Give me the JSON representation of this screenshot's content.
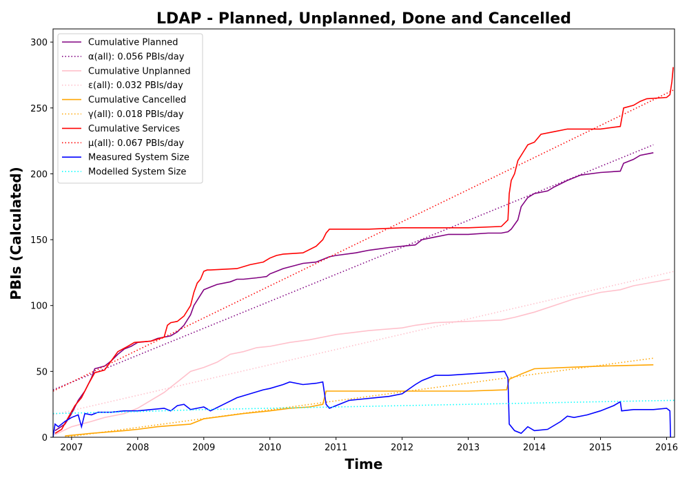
{
  "chart_data": {
    "type": "line",
    "title": "LDAP - Planned, Unplanned, Done  and Cancelled",
    "xlabel": "Time",
    "ylabel": "PBIs (Calculated)",
    "xlim": [
      2006.72,
      2016.12
    ],
    "ylim": [
      0,
      310
    ],
    "x_ticks": [
      2007,
      2008,
      2009,
      2010,
      2011,
      2012,
      2013,
      2014,
      2015,
      2016
    ],
    "x_tick_labels": [
      "2007",
      "2008",
      "2009",
      "2010",
      "2011",
      "2012",
      "2013",
      "2014",
      "2015",
      "2016"
    ],
    "y_ticks": [
      0,
      50,
      100,
      150,
      200,
      250,
      300
    ],
    "y_tick_labels": [
      "0",
      "50",
      "100",
      "150",
      "200",
      "250",
      "300"
    ],
    "grid": false,
    "legend_position": "top-left",
    "series": [
      {
        "name": "Cumulative Planned",
        "color": "#800080",
        "style": "solid",
        "x": [
          2006.75,
          2006.9,
          2007.0,
          2007.1,
          2007.2,
          2007.3,
          2007.35,
          2007.5,
          2007.6,
          2007.7,
          2007.8,
          2007.9,
          2008.0,
          2008.2,
          2008.3,
          2008.5,
          2008.6,
          2008.7,
          2008.8,
          2008.85,
          2008.9,
          2009.0,
          2009.1,
          2009.2,
          2009.4,
          2009.5,
          2009.6,
          2009.8,
          2009.95,
          2010.0,
          2010.1,
          2010.2,
          2010.5,
          2010.7,
          2010.8,
          2010.9,
          2011.0,
          2011.3,
          2011.5,
          2011.8,
          2012.0,
          2012.2,
          2012.3,
          2012.5,
          2012.7,
          2013.0,
          2013.3,
          2013.5,
          2013.6,
          2013.65,
          2013.75,
          2013.8,
          2013.9,
          2014.0,
          2014.2,
          2014.3,
          2014.5,
          2014.7,
          2015.0,
          2015.3,
          2015.35,
          2015.5,
          2015.6,
          2015.8
        ],
        "y": [
          5,
          10,
          18,
          28,
          35,
          45,
          52,
          54,
          58,
          63,
          67,
          69,
          72,
          73,
          75,
          77,
          80,
          85,
          93,
          100,
          104,
          112,
          114,
          116,
          118,
          120,
          120,
          121,
          122,
          124,
          126,
          128,
          132,
          133,
          135,
          137,
          138,
          140,
          142,
          144,
          145,
          146,
          150,
          152,
          154,
          154,
          155,
          155,
          156,
          158,
          165,
          175,
          182,
          185,
          187,
          190,
          195,
          199,
          201,
          202,
          208,
          211,
          214,
          216
        ]
      },
      {
        "name": "α(all): 0.056 PBIs/day",
        "color": "#800080",
        "style": "dotted",
        "x": [
          2006.72,
          2015.8
        ],
        "y": [
          36,
          222
        ]
      },
      {
        "name": "Cumulative Unplanned",
        "color": "#ffc0cb",
        "style": "solid",
        "x": [
          2006.75,
          2007.0,
          2007.3,
          2007.5,
          2007.8,
          2008.0,
          2008.2,
          2008.4,
          2008.6,
          2008.8,
          2009.0,
          2009.2,
          2009.4,
          2009.6,
          2009.8,
          2010.0,
          2010.3,
          2010.6,
          2010.8,
          2011.0,
          2011.5,
          2012.0,
          2012.2,
          2012.5,
          2013.0,
          2013.5,
          2013.7,
          2014.0,
          2014.3,
          2014.6,
          2015.0,
          2015.3,
          2015.5,
          2016.05
        ],
        "y": [
          2,
          8,
          12,
          15,
          18,
          22,
          28,
          34,
          42,
          50,
          53,
          57,
          63,
          65,
          68,
          69,
          72,
          74,
          76,
          78,
          81,
          83,
          85,
          87,
          88,
          89,
          91,
          95,
          100,
          105,
          110,
          112,
          115,
          120
        ]
      },
      {
        "name": "ε(all): 0.032 PBIs/day",
        "color": "#ffc0cb",
        "style": "dotted",
        "x": [
          2006.72,
          2016.12
        ],
        "y": [
          17,
          126
        ]
      },
      {
        "name": "Cumulative Cancelled",
        "color": "#ffa500",
        "style": "solid",
        "x": [
          2006.9,
          2007.3,
          2007.8,
          2008.0,
          2008.3,
          2008.8,
          2009.0,
          2009.3,
          2009.6,
          2010.0,
          2010.3,
          2010.6,
          2010.8,
          2010.85,
          2011.5,
          2012.0,
          2012.5,
          2013.0,
          2013.58,
          2013.62,
          2013.8,
          2014.0,
          2014.5,
          2015.0,
          2015.8
        ],
        "y": [
          1,
          3,
          5,
          6,
          8,
          10,
          14,
          16,
          18,
          20,
          22,
          23,
          25,
          35,
          35,
          35,
          35,
          35,
          36,
          44,
          48,
          52,
          53,
          54,
          55
        ]
      },
      {
        "name": "γ(all): 0.018 PBIs/day",
        "color": "#ffa500",
        "style": "dotted",
        "x": [
          2006.9,
          2015.8
        ],
        "y": [
          0,
          60
        ]
      },
      {
        "name": "Cumulative Services",
        "color": "#ff0000",
        "style": "solid",
        "x": [
          2006.75,
          2006.85,
          2006.95,
          2007.05,
          2007.15,
          2007.25,
          2007.35,
          2007.5,
          2007.6,
          2007.7,
          2007.85,
          2007.95,
          2008.2,
          2008.4,
          2008.45,
          2008.5,
          2008.6,
          2008.7,
          2008.8,
          2008.85,
          2008.9,
          2008.95,
          2009.0,
          2009.05,
          2009.1,
          2009.5,
          2009.7,
          2009.9,
          2010.0,
          2010.1,
          2010.2,
          2010.5,
          2010.7,
          2010.8,
          2010.85,
          2010.9,
          2011.0,
          2011.5,
          2012.0,
          2012.5,
          2013.0,
          2013.5,
          2013.6,
          2013.62,
          2013.65,
          2013.7,
          2013.75,
          2013.85,
          2013.9,
          2014.0,
          2014.1,
          2014.3,
          2014.5,
          2015.0,
          2015.3,
          2015.35,
          2015.5,
          2015.6,
          2015.7,
          2016.0,
          2016.05,
          2016.08,
          2016.1
        ],
        "y": [
          3,
          6,
          15,
          24,
          30,
          40,
          49,
          51,
          58,
          65,
          69,
          72,
          73,
          76,
          85,
          87,
          88,
          92,
          100,
          110,
          117,
          120,
          126,
          127,
          127,
          128,
          131,
          133,
          136,
          138,
          139,
          140,
          145,
          150,
          155,
          158,
          158,
          158,
          159,
          159,
          159,
          160,
          165,
          185,
          195,
          200,
          210,
          218,
          222,
          224,
          230,
          232,
          234,
          234,
          236,
          250,
          252,
          255,
          257,
          258,
          260,
          270,
          281
        ]
      },
      {
        "name": "μ(all): 0.067 PBIs/day",
        "color": "#ff0000",
        "style": "dotted",
        "x": [
          2006.72,
          2016.12
        ],
        "y": [
          35,
          264
        ]
      },
      {
        "name": "Measured System Size",
        "color": "#0000ff",
        "style": "solid",
        "x": [
          2006.72,
          2006.75,
          2006.8,
          2006.9,
          2007.0,
          2007.1,
          2007.15,
          2007.2,
          2007.3,
          2007.4,
          2007.6,
          2007.8,
          2008.0,
          2008.2,
          2008.4,
          2008.5,
          2008.6,
          2008.7,
          2008.8,
          2008.9,
          2009.0,
          2009.1,
          2009.3,
          2009.5,
          2009.7,
          2009.9,
          2010.0,
          2010.2,
          2010.3,
          2010.5,
          2010.7,
          2010.8,
          2010.85,
          2010.9,
          2011.0,
          2011.2,
          2011.4,
          2011.6,
          2011.8,
          2012.0,
          2012.2,
          2012.3,
          2012.5,
          2012.7,
          2013.0,
          2013.3,
          2013.55,
          2013.6,
          2013.62,
          2013.7,
          2013.8,
          2013.9,
          2014.0,
          2014.2,
          2014.4,
          2014.5,
          2014.6,
          2014.8,
          2015.0,
          2015.2,
          2015.3,
          2015.32,
          2015.5,
          2015.8,
          2016.0,
          2016.05,
          2016.06
        ],
        "y": [
          0,
          10,
          8,
          12,
          15,
          17,
          8,
          18,
          17,
          19,
          19,
          20,
          20,
          21,
          22,
          20,
          24,
          25,
          21,
          22,
          23,
          20,
          25,
          30,
          33,
          36,
          37,
          40,
          42,
          40,
          41,
          42,
          25,
          22,
          24,
          28,
          29,
          30,
          31,
          33,
          40,
          43,
          47,
          47,
          48,
          49,
          50,
          45,
          10,
          5,
          3,
          8,
          5,
          6,
          12,
          16,
          15,
          17,
          20,
          24,
          27,
          20,
          21,
          21,
          22,
          20,
          0
        ]
      },
      {
        "name": "Modelled System Size",
        "color": "#00ffff",
        "style": "dotted",
        "x": [
          2006.72,
          2008.0,
          2009.0,
          2010.0,
          2011.0,
          2012.0,
          2013.0,
          2014.0,
          2015.0,
          2016.12
        ],
        "y": [
          18,
          19.5,
          21,
          22,
          23,
          24,
          25,
          26,
          27,
          28
        ]
      }
    ]
  }
}
